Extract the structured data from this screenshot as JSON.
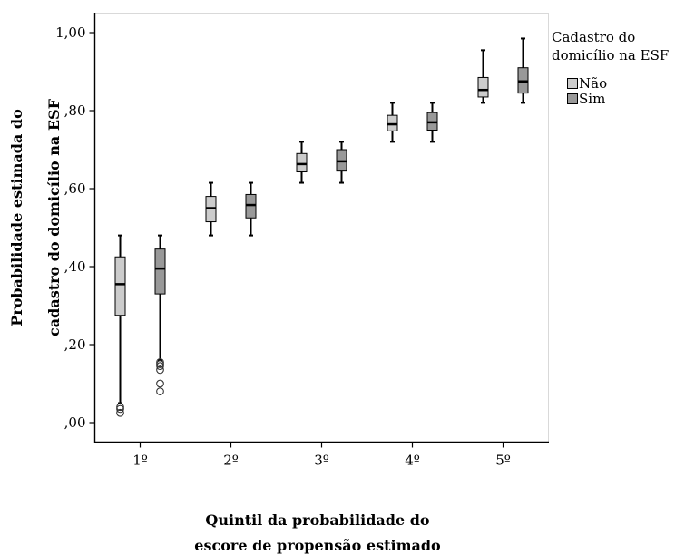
{
  "chart_data": {
    "type": "boxplot",
    "ylabel_lines": [
      "Probabilidade estimada do",
      "cadastro do domicílio na ESF"
    ],
    "xlabel_lines": [
      "Quintil da probabilidade do",
      "escore de propensão estimado"
    ],
    "categories": [
      "1º",
      "2º",
      "3º",
      "4º",
      "5º"
    ],
    "ylim": [
      -0.05,
      1.05
    ],
    "yticks": [
      0.0,
      0.2,
      0.4,
      0.6,
      0.8,
      1.0
    ],
    "ytick_labels": [
      ",00",
      ",20",
      ",40",
      ",60",
      ",80",
      "1,00"
    ],
    "grid": false,
    "legend": {
      "title_lines": [
        "Cadastro do",
        "domicílio na ESF"
      ],
      "placement": "right"
    },
    "series": [
      {
        "name": "Não",
        "color": "#cccccc",
        "boxes": [
          {
            "category": "1º",
            "whisker_low": 0.05,
            "q1": 0.275,
            "median": 0.355,
            "q3": 0.425,
            "whisker_high": 0.48,
            "outliers": [
              0.04,
              0.035,
              0.025
            ]
          },
          {
            "category": "2º",
            "whisker_low": 0.48,
            "q1": 0.515,
            "median": 0.55,
            "q3": 0.58,
            "whisker_high": 0.615,
            "outliers": []
          },
          {
            "category": "3º",
            "whisker_low": 0.615,
            "q1": 0.643,
            "median": 0.663,
            "q3": 0.69,
            "whisker_high": 0.72,
            "outliers": []
          },
          {
            "category": "4º",
            "whisker_low": 0.72,
            "q1": 0.748,
            "median": 0.765,
            "q3": 0.788,
            "whisker_high": 0.82,
            "outliers": []
          },
          {
            "category": "5º",
            "whisker_low": 0.82,
            "q1": 0.835,
            "median": 0.853,
            "q3": 0.885,
            "whisker_high": 0.955,
            "outliers": []
          }
        ]
      },
      {
        "name": "Sim",
        "color": "#999999",
        "boxes": [
          {
            "category": "1º",
            "whisker_low": 0.16,
            "q1": 0.33,
            "median": 0.395,
            "q3": 0.445,
            "whisker_high": 0.48,
            "outliers": [
              0.155,
              0.15,
              0.145,
              0.135,
              0.1,
              0.08
            ]
          },
          {
            "category": "2º",
            "whisker_low": 0.48,
            "q1": 0.525,
            "median": 0.558,
            "q3": 0.585,
            "whisker_high": 0.615,
            "outliers": []
          },
          {
            "category": "3º",
            "whisker_low": 0.615,
            "q1": 0.645,
            "median": 0.67,
            "q3": 0.7,
            "whisker_high": 0.72,
            "outliers": []
          },
          {
            "category": "4º",
            "whisker_low": 0.72,
            "q1": 0.75,
            "median": 0.77,
            "q3": 0.795,
            "whisker_high": 0.82,
            "outliers": []
          },
          {
            "category": "5º",
            "whisker_low": 0.82,
            "q1": 0.845,
            "median": 0.875,
            "q3": 0.91,
            "whisker_high": 0.985,
            "outliers": []
          }
        ]
      }
    ]
  }
}
